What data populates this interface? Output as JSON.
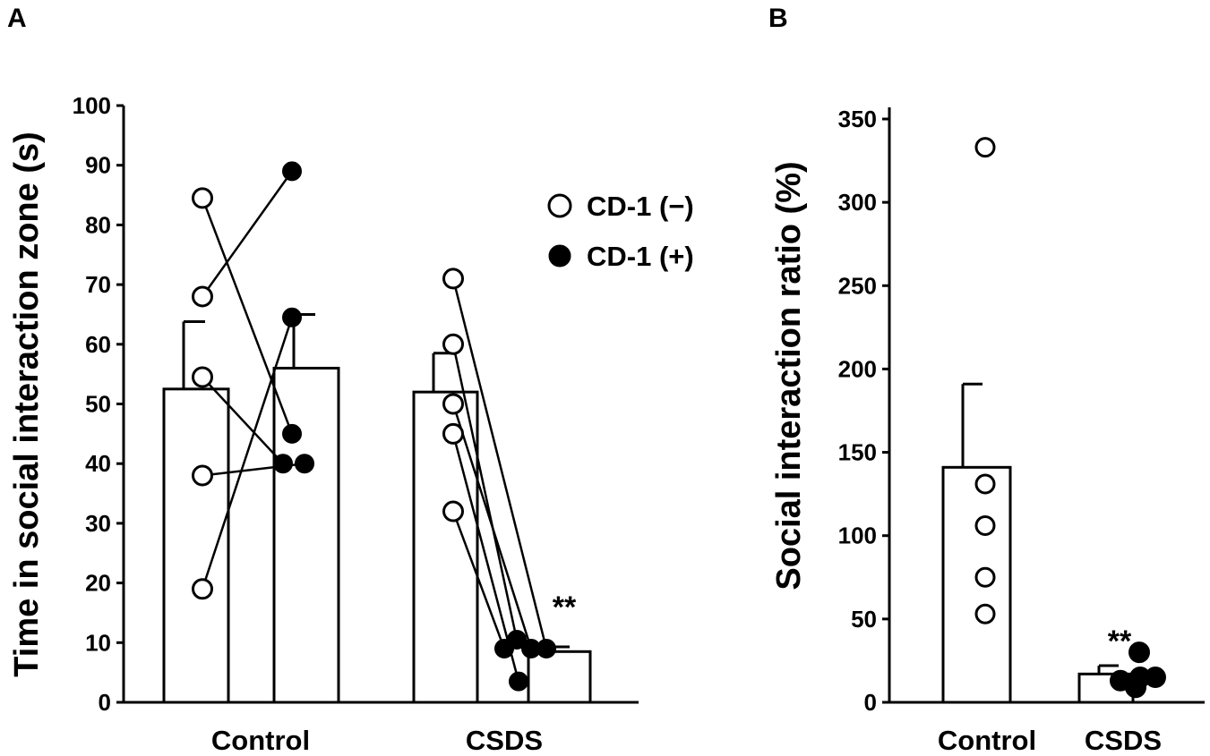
{
  "chart_data": [
    {
      "panel": "A",
      "type": "bar",
      "ylabel": "Time in social interaction zone (s)",
      "ylim": [
        0,
        100
      ],
      "yticks": [
        0,
        10,
        20,
        30,
        40,
        50,
        60,
        70,
        80,
        90,
        100
      ],
      "categories": [
        "Control",
        "CSDS"
      ],
      "legend": [
        {
          "label": "CD-1 (−)",
          "marker": "open"
        },
        {
          "label": "CD-1 (+)",
          "marker": "filled"
        }
      ],
      "bars": [
        {
          "group": "Control",
          "condition": "CD-1 (−)",
          "mean": 52.5,
          "error": 11.3
        },
        {
          "group": "Control",
          "condition": "CD-1 (+)",
          "mean": 56,
          "error": 9
        },
        {
          "group": "CSDS",
          "condition": "CD-1 (−)",
          "mean": 52,
          "error": 6.5
        },
        {
          "group": "CSDS",
          "condition": "CD-1 (+)",
          "mean": 8.5,
          "error": 0.8
        }
      ],
      "pairs": [
        {
          "group": "Control",
          "minus": 84.5,
          "plus": 45
        },
        {
          "group": "Control",
          "minus": 68,
          "plus": 89
        },
        {
          "group": "Control",
          "minus": 54.5,
          "plus": 40
        },
        {
          "group": "Control",
          "minus": 38,
          "plus": 40
        },
        {
          "group": "Control",
          "minus": 19,
          "plus": 64.5
        },
        {
          "group": "CSDS",
          "minus": 71,
          "plus": 9
        },
        {
          "group": "CSDS",
          "minus": 60,
          "plus": 10.5
        },
        {
          "group": "CSDS",
          "minus": 50,
          "plus": 9
        },
        {
          "group": "CSDS",
          "minus": 45,
          "plus": 3.5
        },
        {
          "group": "CSDS",
          "minus": 32,
          "plus": 9
        }
      ],
      "annotations": [
        {
          "text": "**",
          "target": "CSDS CD-1 (+)"
        }
      ]
    },
    {
      "panel": "B",
      "type": "bar",
      "ylabel": "Social interaction ratio (%)",
      "ylim": [
        0,
        350
      ],
      "yticks": [
        0,
        50,
        100,
        150,
        200,
        250,
        300,
        350
      ],
      "categories": [
        "Control",
        "CSDS"
      ],
      "bars": [
        {
          "group": "Control",
          "mean": 141,
          "error": 50
        },
        {
          "group": "CSDS",
          "mean": 17,
          "error": 5
        }
      ],
      "points": [
        {
          "group": "Control",
          "marker": "open",
          "values": [
            333,
            131,
            106,
            75,
            53
          ]
        },
        {
          "group": "CSDS",
          "marker": "filled",
          "values": [
            30,
            15,
            13,
            15,
            9
          ]
        }
      ],
      "annotations": [
        {
          "text": "**",
          "target": "CSDS"
        }
      ]
    }
  ]
}
